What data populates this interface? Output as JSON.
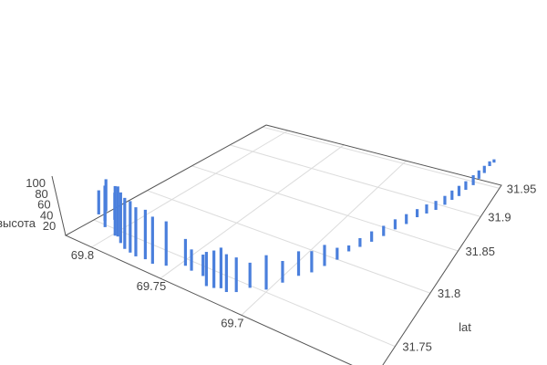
{
  "chart_data": {
    "type": "scatter3d",
    "mode": "vertical line segments",
    "color": "#4a7fdc",
    "grid": true,
    "axes": {
      "x": {
        "title": "",
        "range": [
          69.633,
          69.821
        ],
        "ticks": [
          69.7,
          69.75,
          69.8
        ],
        "tick_labels": [
          "69.7",
          "69.75",
          "69.8"
        ]
      },
      "y": {
        "title": "lat",
        "range": [
          31.727,
          31.956
        ],
        "ticks": [
          31.75,
          31.8,
          31.85,
          31.9,
          31.95
        ],
        "tick_labels": [
          "31.75",
          "31.8",
          "31.85",
          "31.9",
          "31.95"
        ]
      },
      "z": {
        "title": "высота",
        "range": [
          0,
          105
        ],
        "ticks": [
          20,
          40,
          60,
          80,
          100
        ],
        "tick_labels": [
          "20",
          "40",
          "60",
          "80",
          "100"
        ]
      }
    },
    "segments_columns": [
      "lon",
      "lat",
      "z_low",
      "z_high"
    ],
    "segments": [
      [
        69.812,
        31.745,
        25,
        70
      ],
      [
        69.809,
        31.748,
        30,
        90
      ],
      [
        69.806,
        31.744,
        20,
        85
      ],
      [
        69.803,
        31.741,
        15,
        80
      ],
      [
        69.8,
        31.746,
        25,
        75
      ],
      [
        69.796,
        31.742,
        5,
        95
      ],
      [
        69.792,
        31.74,
        10,
        100
      ],
      [
        69.788,
        31.738,
        5,
        95
      ],
      [
        69.784,
        31.737,
        0,
        90
      ],
      [
        69.779,
        31.736,
        0,
        90
      ],
      [
        69.774,
        31.735,
        0,
        85
      ],
      [
        69.768,
        31.736,
        0,
        85
      ],
      [
        69.762,
        31.735,
        0,
        80
      ],
      [
        69.755,
        31.738,
        0,
        75
      ],
      [
        69.745,
        31.742,
        5,
        50
      ],
      [
        69.738,
        31.738,
        10,
        45
      ],
      [
        69.732,
        31.74,
        5,
        40
      ],
      [
        69.727,
        31.736,
        0,
        55
      ],
      [
        69.723,
        31.737,
        0,
        60
      ],
      [
        69.72,
        31.739,
        0,
        65
      ],
      [
        69.716,
        31.738,
        0,
        60
      ],
      [
        69.712,
        31.741,
        0,
        55
      ],
      [
        69.707,
        31.746,
        5,
        45
      ],
      [
        69.701,
        31.752,
        0,
        55
      ],
      [
        69.696,
        31.76,
        5,
        40
      ],
      [
        69.691,
        31.768,
        10,
        50
      ],
      [
        69.687,
        31.775,
        10,
        45
      ],
      [
        69.683,
        31.782,
        15,
        50
      ],
      [
        69.679,
        31.789,
        20,
        40
      ],
      [
        69.675,
        31.795,
        30,
        40
      ],
      [
        69.672,
        31.803,
        30,
        45
      ],
      [
        69.669,
        31.812,
        30,
        48
      ],
      [
        69.666,
        31.822,
        30,
        48
      ],
      [
        69.663,
        31.832,
        32,
        50
      ],
      [
        69.66,
        31.842,
        32,
        50
      ],
      [
        69.657,
        31.852,
        35,
        50
      ],
      [
        69.654,
        31.86,
        35,
        52
      ],
      [
        69.651,
        31.868,
        35,
        52
      ],
      [
        69.648,
        31.876,
        38,
        55
      ],
      [
        69.646,
        31.884,
        40,
        58
      ],
      [
        69.644,
        31.892,
        40,
        60
      ],
      [
        69.642,
        31.9,
        45,
        62
      ],
      [
        69.64,
        31.91,
        45,
        65
      ],
      [
        69.639,
        31.92,
        48,
        65
      ],
      [
        69.638,
        31.93,
        50,
        65
      ],
      [
        69.637,
        31.94,
        55,
        65
      ],
      [
        69.636,
        31.948,
        55,
        62
      ]
    ]
  }
}
